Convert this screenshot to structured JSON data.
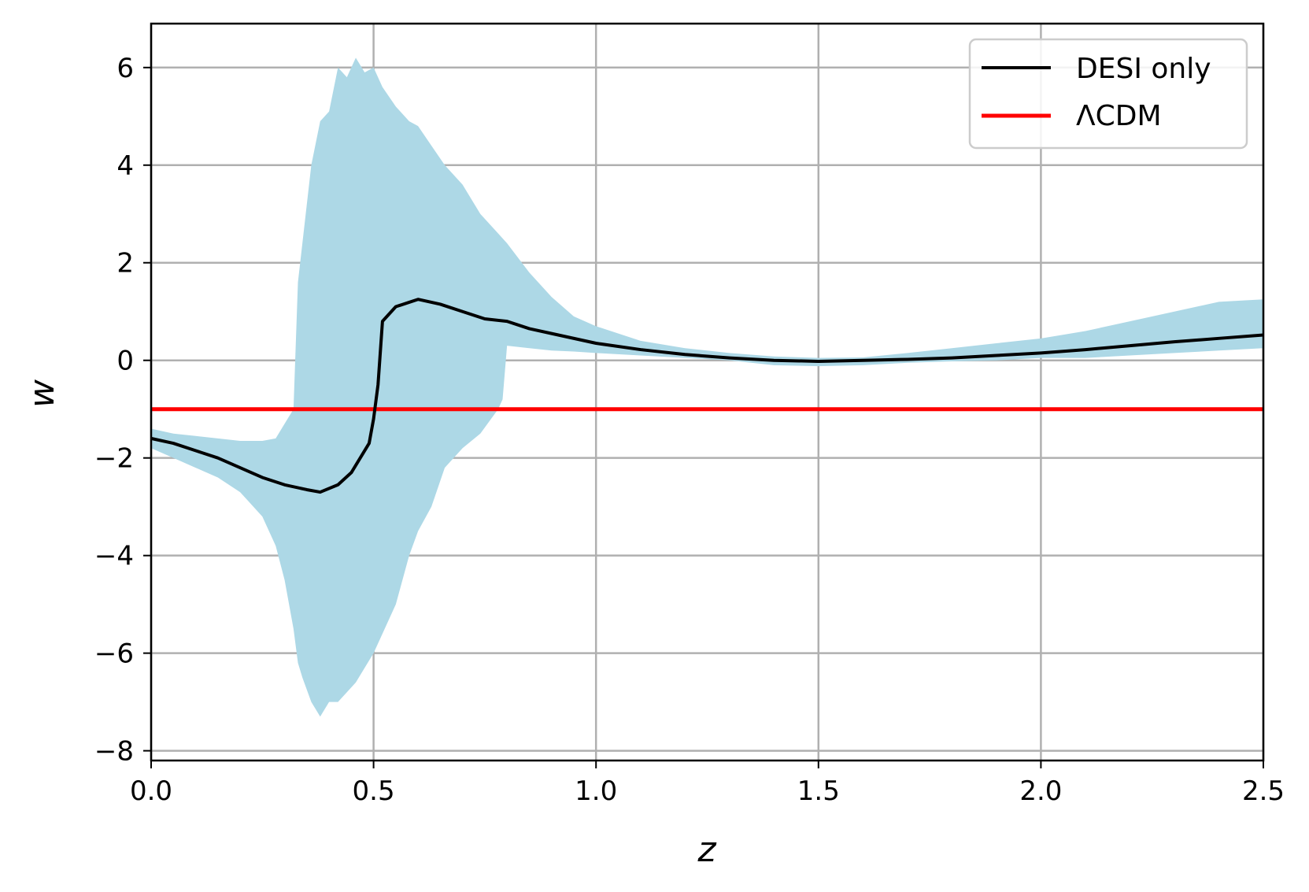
{
  "chart_data": {
    "type": "line",
    "title": "",
    "xlabel": "z",
    "ylabel": "w",
    "xlim": [
      0.0,
      2.5
    ],
    "ylim": [
      -8.2,
      6.9
    ],
    "grid": true,
    "legend_placement": "top-right",
    "x_ticks": [
      {
        "value": 0.0,
        "label": "0.0"
      },
      {
        "value": 0.5,
        "label": "0.5"
      },
      {
        "value": 1.0,
        "label": "1.0"
      },
      {
        "value": 1.5,
        "label": "1.5"
      },
      {
        "value": 2.0,
        "label": "2.0"
      },
      {
        "value": 2.5,
        "label": "2.5"
      }
    ],
    "y_ticks": [
      {
        "value": 6,
        "label": "6"
      },
      {
        "value": 4,
        "label": "4"
      },
      {
        "value": 2,
        "label": "2"
      },
      {
        "value": 0,
        "label": "0"
      },
      {
        "value": -2,
        "label": "−2"
      },
      {
        "value": -4,
        "label": "−4"
      },
      {
        "value": -6,
        "label": "−6"
      },
      {
        "value": -8,
        "label": "−8"
      }
    ],
    "colors": {
      "band": "#add8e6",
      "desi": "#000000",
      "lcdm": "#ff0000",
      "grid": "#b0b0b0"
    },
    "series": [
      {
        "name": "DESI only",
        "x": [
          0.0,
          0.05,
          0.1,
          0.15,
          0.2,
          0.25,
          0.3,
          0.35,
          0.38,
          0.42,
          0.45,
          0.47,
          0.49,
          0.5,
          0.51,
          0.52,
          0.55,
          0.6,
          0.65,
          0.7,
          0.75,
          0.8,
          0.85,
          0.9,
          1.0,
          1.1,
          1.2,
          1.3,
          1.4,
          1.5,
          1.6,
          1.7,
          1.8,
          1.9,
          2.0,
          2.1,
          2.2,
          2.3,
          2.4,
          2.5
        ],
        "y": [
          -1.6,
          -1.7,
          -1.85,
          -2.0,
          -2.2,
          -2.4,
          -2.55,
          -2.65,
          -2.7,
          -2.55,
          -2.3,
          -2.0,
          -1.7,
          -1.2,
          -0.5,
          0.8,
          1.1,
          1.25,
          1.15,
          1.0,
          0.85,
          0.8,
          0.65,
          0.55,
          0.35,
          0.22,
          0.12,
          0.05,
          0.0,
          -0.02,
          0.0,
          0.02,
          0.05,
          0.1,
          0.15,
          0.22,
          0.3,
          0.38,
          0.45,
          0.52
        ]
      },
      {
        "name": "ΛCDM",
        "x": [
          0.0,
          2.5
        ],
        "y": [
          -1.0,
          -1.0
        ]
      }
    ],
    "band": {
      "x": [
        0.0,
        0.05,
        0.1,
        0.15,
        0.2,
        0.25,
        0.28,
        0.3,
        0.32,
        0.33,
        0.34,
        0.36,
        0.38,
        0.4,
        0.42,
        0.44,
        0.46,
        0.48,
        0.5,
        0.52,
        0.55,
        0.58,
        0.6,
        0.63,
        0.66,
        0.7,
        0.74,
        0.78,
        0.79,
        0.8,
        0.85,
        0.9,
        0.95,
        1.0,
        1.1,
        1.2,
        1.3,
        1.4,
        1.5,
        1.6,
        1.7,
        1.8,
        1.9,
        2.0,
        2.1,
        2.2,
        2.3,
        2.4,
        2.5
      ],
      "upper": [
        -1.4,
        -1.5,
        -1.55,
        -1.6,
        -1.65,
        -1.65,
        -1.6,
        -1.3,
        -1.0,
        1.6,
        2.4,
        4.0,
        4.9,
        5.1,
        6.0,
        5.8,
        6.2,
        5.9,
        6.0,
        5.6,
        5.2,
        4.9,
        4.8,
        4.4,
        4.0,
        3.6,
        3.0,
        2.6,
        2.5,
        2.4,
        1.8,
        1.3,
        0.9,
        0.7,
        0.4,
        0.25,
        0.15,
        0.08,
        0.05,
        0.06,
        0.15,
        0.25,
        0.35,
        0.45,
        0.6,
        0.8,
        1.0,
        1.2,
        1.25
      ],
      "lower": [
        -1.8,
        -2.0,
        -2.2,
        -2.4,
        -2.7,
        -3.2,
        -3.8,
        -4.5,
        -5.5,
        -6.2,
        -6.5,
        -7.0,
        -7.3,
        -7.0,
        -7.0,
        -6.8,
        -6.6,
        -6.3,
        -6.0,
        -5.6,
        -5.0,
        -4.0,
        -3.5,
        -3.0,
        -2.2,
        -1.8,
        -1.5,
        -1.0,
        -0.8,
        0.3,
        0.25,
        0.2,
        0.18,
        0.15,
        0.1,
        0.05,
        0.0,
        -0.1,
        -0.12,
        -0.1,
        -0.05,
        -0.02,
        0.0,
        0.05,
        0.05,
        0.1,
        0.15,
        0.2,
        0.25
      ]
    }
  }
}
